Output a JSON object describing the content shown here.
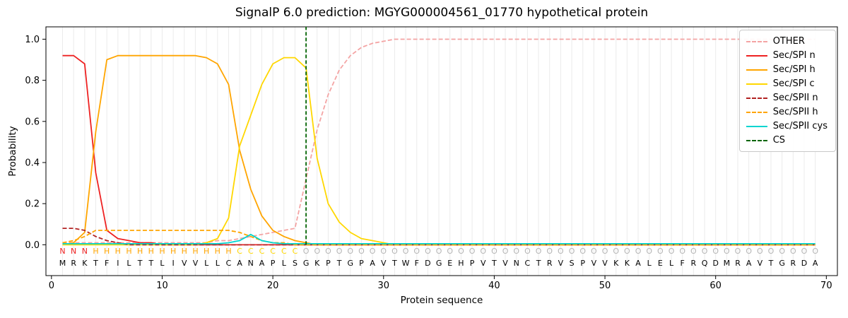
{
  "chart_data": {
    "type": "line",
    "title": "SignalP 6.0 prediction: MGYG000004561_01770 hypothetical protein",
    "xlabel": "Protein sequence",
    "ylabel": "Probability",
    "xticks": [
      0,
      10,
      20,
      30,
      40,
      50,
      60,
      70
    ],
    "yticks": [
      0.0,
      0.2,
      0.4,
      0.6,
      0.8,
      1.0
    ],
    "xlim": [
      -0.5,
      71
    ],
    "ylim": [
      -0.15,
      1.06
    ],
    "grid": "vertical line per residue",
    "legend_position": "upper right",
    "cs_label": "CS",
    "cs_position": 23,
    "sequence": "MRKTFILTTLIVVLLCANAPLSGKPTGPAVTWFDGEHPVTVNCTRVSPVVKKALELFRQDMRAVTGRDA",
    "annotation": "NNNHHHHHHHHHHHHHCCCCCCOOOOOOOOOOOOOOOOOOOOOOOOOOOOOOOOOOOOOOOOOOOOOO",
    "series": [
      {
        "name": "OTHER",
        "color": "#f4a4a4",
        "dash": true,
        "values": [
          0.01,
          0.01,
          0.01,
          0.01,
          0.01,
          0.01,
          0.01,
          0.01,
          0.01,
          0.01,
          0.01,
          0.01,
          0.01,
          0.01,
          0.02,
          0.02,
          0.03,
          0.04,
          0.05,
          0.06,
          0.07,
          0.08,
          0.32,
          0.56,
          0.73,
          0.85,
          0.92,
          0.96,
          0.98,
          0.99,
          1,
          1,
          1,
          1,
          1,
          1,
          1,
          1,
          1,
          1,
          1,
          1,
          1,
          1,
          1,
          1,
          1,
          1,
          1,
          1,
          1,
          1,
          1,
          1,
          1,
          1,
          1,
          1,
          1,
          1,
          1,
          1,
          1,
          1,
          1,
          1,
          1,
          1,
          1
        ]
      },
      {
        "name": "Sec/SPI n",
        "color": "#ee2222",
        "dash": false,
        "values": [
          0.92,
          0.92,
          0.88,
          0.35,
          0.07,
          0.03,
          0.02,
          0.01,
          0.01,
          0,
          0,
          0,
          0,
          0,
          0,
          0,
          0,
          0,
          0,
          0,
          0,
          0,
          0,
          0,
          0,
          0,
          0,
          0,
          0,
          0,
          0,
          0,
          0,
          0,
          0,
          0,
          0,
          0,
          0,
          0,
          0,
          0,
          0,
          0,
          0,
          0,
          0,
          0,
          0,
          0,
          0,
          0,
          0,
          0,
          0,
          0,
          0,
          0,
          0,
          0,
          0,
          0,
          0,
          0,
          0,
          0,
          0,
          0,
          0
        ]
      },
      {
        "name": "Sec/SPI h",
        "color": "#ffa500",
        "dash": false,
        "values": [
          0,
          0.01,
          0.06,
          0.55,
          0.9,
          0.92,
          0.92,
          0.92,
          0.92,
          0.92,
          0.92,
          0.92,
          0.92,
          0.91,
          0.88,
          0.78,
          0.46,
          0.27,
          0.14,
          0.07,
          0.04,
          0.02,
          0.01,
          0,
          0,
          0,
          0,
          0,
          0,
          0,
          0,
          0,
          0,
          0,
          0,
          0,
          0,
          0,
          0,
          0,
          0,
          0,
          0,
          0,
          0,
          0,
          0,
          0,
          0,
          0,
          0,
          0,
          0,
          0,
          0,
          0,
          0,
          0,
          0,
          0,
          0,
          0,
          0,
          0,
          0,
          0,
          0,
          0,
          0
        ]
      },
      {
        "name": "Sec/SPI c",
        "color": "#ffd700",
        "dash": false,
        "values": [
          0,
          0,
          0,
          0,
          0,
          0,
          0,
          0,
          0,
          0,
          0,
          0,
          0,
          0.01,
          0.03,
          0.13,
          0.48,
          0.63,
          0.78,
          0.88,
          0.91,
          0.91,
          0.86,
          0.42,
          0.2,
          0.11,
          0.06,
          0.03,
          0.02,
          0.01,
          0,
          0,
          0,
          0,
          0,
          0,
          0,
          0,
          0,
          0,
          0,
          0,
          0,
          0,
          0,
          0,
          0,
          0,
          0,
          0,
          0,
          0,
          0,
          0,
          0,
          0,
          0,
          0,
          0,
          0,
          0,
          0,
          0,
          0,
          0,
          0,
          0,
          0,
          0
        ]
      },
      {
        "name": "Sec/SPII n",
        "color": "#b22222",
        "dash": true,
        "values": [
          0.08,
          0.08,
          0.07,
          0.04,
          0.02,
          0.01,
          0,
          0,
          0,
          0,
          0,
          0,
          0,
          0,
          0,
          0,
          0,
          0,
          0,
          0,
          0,
          0,
          0,
          0,
          0,
          0,
          0,
          0,
          0,
          0,
          0,
          0,
          0,
          0,
          0,
          0,
          0,
          0,
          0,
          0,
          0,
          0,
          0,
          0,
          0,
          0,
          0,
          0,
          0,
          0,
          0,
          0,
          0,
          0,
          0,
          0,
          0,
          0,
          0,
          0,
          0,
          0,
          0,
          0,
          0,
          0,
          0,
          0,
          0
        ]
      },
      {
        "name": "Sec/SPII h",
        "color": "#ffa500",
        "dash": true,
        "values": [
          0.01,
          0.02,
          0.04,
          0.07,
          0.07,
          0.07,
          0.07,
          0.07,
          0.07,
          0.07,
          0.07,
          0.07,
          0.07,
          0.07,
          0.07,
          0.07,
          0.06,
          0.04,
          0.02,
          0.01,
          0.01,
          0,
          0,
          0,
          0,
          0,
          0,
          0,
          0,
          0,
          0,
          0,
          0,
          0,
          0,
          0,
          0,
          0,
          0,
          0,
          0,
          0,
          0,
          0,
          0,
          0,
          0,
          0,
          0,
          0,
          0,
          0,
          0,
          0,
          0,
          0,
          0,
          0,
          0,
          0,
          0,
          0,
          0,
          0,
          0,
          0,
          0,
          0,
          0
        ]
      },
      {
        "name": "Sec/SPII cys",
        "color": "#00d5d0",
        "dash": false,
        "values": [
          0.005,
          0.005,
          0.005,
          0.005,
          0.005,
          0.005,
          0.005,
          0.005,
          0.005,
          0.005,
          0.005,
          0.005,
          0.005,
          0.005,
          0.005,
          0.01,
          0.02,
          0.05,
          0.02,
          0.01,
          0.005,
          0.005,
          0.005,
          0.005,
          0.005,
          0.005,
          0.005,
          0.005,
          0.005,
          0.005,
          0.005,
          0.005,
          0.005,
          0.005,
          0.005,
          0.005,
          0.005,
          0.005,
          0.005,
          0.005,
          0.005,
          0.005,
          0.005,
          0.005,
          0.005,
          0.005,
          0.005,
          0.005,
          0.005,
          0.005,
          0.005,
          0.005,
          0.005,
          0.005,
          0.005,
          0.005,
          0.005,
          0.005,
          0.005,
          0.005,
          0.005,
          0.005,
          0.005,
          0.005,
          0.005,
          0.005,
          0.005,
          0.005,
          0.005
        ]
      }
    ]
  },
  "colors": {
    "grid": "#ebebeb",
    "axis": "#000000",
    "cs": "#006400",
    "sequence_text": "#000000",
    "letters": {
      "N": "#ee2222",
      "H": "#ffa500",
      "C": "#ffd700",
      "O": "#b5b5b5"
    }
  }
}
